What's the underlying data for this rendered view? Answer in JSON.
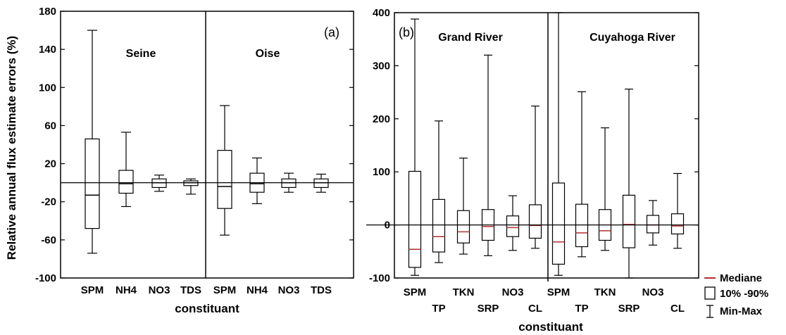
{
  "chart_data": [
    {
      "type": "box",
      "panel_label": "(a)",
      "ylabel": "Relative annual flux estimate errors (%)",
      "xlabel": "constituant",
      "ylim": [
        -100,
        180
      ],
      "yticks": [
        "-100",
        "-60",
        "-20",
        "20",
        "60",
        "100",
        "140",
        "180"
      ],
      "zero_line": 0,
      "regions": [
        "Seine",
        "Oise"
      ],
      "categories": [
        "SPM",
        "NH4",
        "NO3",
        "TDS",
        "SPM",
        "NH4",
        "NO3",
        "TDS"
      ],
      "boxes": [
        {
          "region": 0,
          "category": "SPM",
          "min": -74,
          "p10": -48,
          "median": -13,
          "p90": 46,
          "max": 160
        },
        {
          "region": 0,
          "category": "NH4",
          "min": -25,
          "p10": -11,
          "median": -1,
          "p90": 13,
          "max": 53
        },
        {
          "region": 0,
          "category": "NO3",
          "min": -9,
          "p10": -5,
          "median": 0,
          "p90": 4,
          "max": 8
        },
        {
          "region": 0,
          "category": "TDS",
          "min": -12,
          "p10": -3,
          "median": 0,
          "p90": 2,
          "max": 4
        },
        {
          "region": 1,
          "category": "SPM",
          "min": -55,
          "p10": -27,
          "median": -4,
          "p90": 34,
          "max": 81
        },
        {
          "region": 1,
          "category": "NH4",
          "min": -22,
          "p10": -10,
          "median": -1,
          "p90": 10,
          "max": 26
        },
        {
          "region": 1,
          "category": "NO3",
          "min": -10,
          "p10": -5,
          "median": 0,
          "p90": 4,
          "max": 10
        },
        {
          "region": 1,
          "category": "TDS",
          "min": -10,
          "p10": -5,
          "median": 0,
          "p90": 4,
          "max": 9
        }
      ]
    },
    {
      "type": "box",
      "panel_label": "(b)",
      "xlabel": "constituant",
      "ylim": [
        -100,
        400
      ],
      "yticks": [
        "-100",
        "0",
        "100",
        "200",
        "300",
        "400"
      ],
      "zero_line": 0,
      "regions": [
        "Grand River",
        "Cuyahoga River"
      ],
      "categories": [
        "SPM",
        "TP",
        "TKN",
        "SRP",
        "NO3",
        "CL",
        "SPM",
        "TP",
        "TKN",
        "SRP",
        "NO3",
        "CL"
      ],
      "boxes": [
        {
          "region": 0,
          "category": "SPM",
          "min": -95,
          "p10": -80,
          "median": -46,
          "p90": 101,
          "max": 388
        },
        {
          "region": 0,
          "category": "TP",
          "min": -71,
          "p10": -51,
          "median": -22,
          "p90": 48,
          "max": 196
        },
        {
          "region": 0,
          "category": "TKN",
          "min": -55,
          "p10": -34,
          "median": -13,
          "p90": 27,
          "max": 126
        },
        {
          "region": 0,
          "category": "SRP",
          "min": -58,
          "p10": -29,
          "median": -3,
          "p90": 29,
          "max": 320
        },
        {
          "region": 0,
          "category": "NO3",
          "min": -48,
          "p10": -22,
          "median": -5,
          "p90": 17,
          "max": 55
        },
        {
          "region": 0,
          "category": "CL",
          "min": -44,
          "p10": -25,
          "median": -1,
          "p90": 38,
          "max": 224
        },
        {
          "region": 1,
          "category": "SPM",
          "min": -95,
          "p10": -74,
          "median": -32,
          "p90": 79,
          "max": 400
        },
        {
          "region": 1,
          "category": "TP",
          "min": -60,
          "p10": -41,
          "median": -15,
          "p90": 39,
          "max": 251
        },
        {
          "region": 1,
          "category": "TKN",
          "min": -48,
          "p10": -29,
          "median": -11,
          "p90": 29,
          "max": 183
        },
        {
          "region": 1,
          "category": "SRP",
          "min": -100,
          "p10": -43,
          "median": 1,
          "p90": 56,
          "max": 256
        },
        {
          "region": 1,
          "category": "NO3",
          "min": -38,
          "p10": -15,
          "median": 0,
          "p90": 18,
          "max": 46
        },
        {
          "region": 1,
          "category": "CL",
          "min": -44,
          "p10": -17,
          "median": -2,
          "p90": 21,
          "max": 97
        }
      ]
    }
  ],
  "legend": {
    "items": [
      {
        "label": "Mediane",
        "symbol": "line",
        "color": "#b03030"
      },
      {
        "label": "10% -90%",
        "symbol": "box",
        "color": "#000000"
      },
      {
        "label": "Min-Max",
        "symbol": "whisker",
        "color": "#000000"
      }
    ]
  },
  "colors": {
    "axis": "#000000",
    "box": "#000000",
    "median_a": "#000000",
    "median_b": "#b03030"
  }
}
